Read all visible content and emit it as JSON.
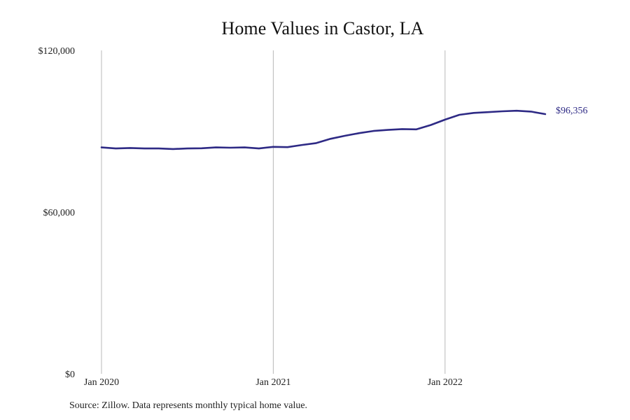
{
  "chart_data": {
    "type": "line",
    "title": "Home Values in Castor, LA",
    "xlabel": "",
    "ylabel": "",
    "ylim": [
      0,
      120000
    ],
    "y_ticks": [
      {
        "value": 0,
        "label": "$0"
      },
      {
        "value": 60000,
        "label": "$60,000"
      },
      {
        "value": 120000,
        "label": "$120,000"
      }
    ],
    "x_ticks": [
      {
        "month_index": 0,
        "label": "Jan 2020"
      },
      {
        "month_index": 12,
        "label": "Jan 2021"
      },
      {
        "month_index": 24,
        "label": "Jan 2022"
      }
    ],
    "x": [
      "Jan 2020",
      "Feb 2020",
      "Mar 2020",
      "Apr 2020",
      "May 2020",
      "Jun 2020",
      "Jul 2020",
      "Aug 2020",
      "Sep 2020",
      "Oct 2020",
      "Nov 2020",
      "Dec 2020",
      "Jan 2021",
      "Feb 2021",
      "Mar 2021",
      "Apr 2021",
      "May 2021",
      "Jun 2021",
      "Jul 2021",
      "Aug 2021",
      "Sep 2021",
      "Oct 2021",
      "Nov 2021",
      "Dec 2021",
      "Jan 2022",
      "Feb 2022",
      "Mar 2022",
      "Apr 2022",
      "May 2022",
      "Jun 2022",
      "Jul 2022",
      "Aug 2022"
    ],
    "series": [
      {
        "color": "#2e2a85",
        "values": [
          84000,
          83600,
          83800,
          83600,
          83600,
          83400,
          83600,
          83700,
          84000,
          83900,
          84000,
          83600,
          84200,
          84100,
          84900,
          85600,
          87200,
          88300,
          89300,
          90100,
          90500,
          90800,
          90700,
          92300,
          94300,
          96100,
          96800,
          97100,
          97400,
          97600,
          97300,
          96356
        ],
        "end_label": "$96,356"
      }
    ],
    "grid": {
      "vertical": true,
      "horizontal": false
    },
    "source_note": "Source: Zillow. Data represents monthly typical home value."
  }
}
